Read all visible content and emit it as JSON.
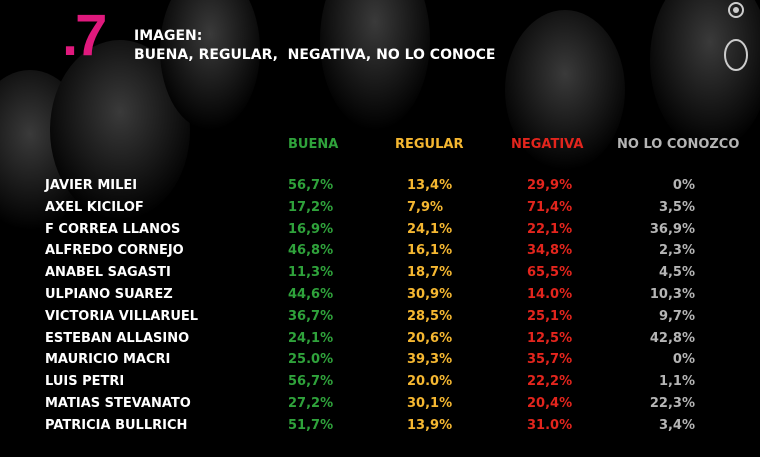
{
  "header": {
    "number": ".7",
    "title": "IMAGEN:",
    "subtitle": "BUENA, REGULAR,  NEGATIVA, NO LO CONOCE"
  },
  "table": {
    "columns": [
      "BUENA",
      "REGULAR",
      "NEGATIVA",
      "NO LO CONOZCO"
    ],
    "rows": [
      [
        "JAVIER MILEI",
        "56,7%",
        "13,4%",
        "29,9%",
        "0%"
      ],
      [
        "AXEL KICILOF",
        "17,2%",
        "7,9%",
        "71,4%",
        "3,5%"
      ],
      [
        "F CORREA LLANOS",
        "16,9%",
        "24,1%",
        "22,1%",
        "36,9%"
      ],
      [
        "ALFREDO CORNEJO",
        "46,8%",
        "16,1%",
        "34,8%",
        "2,3%"
      ],
      [
        "ANABEL SAGASTI",
        "11,3%",
        "18,7%",
        "65,5%",
        "4,5%"
      ],
      [
        "ULPIANO SUAREZ",
        "44,6%",
        "30,9%",
        "14.0%",
        "10,3%"
      ],
      [
        "VICTORIA VILLARUEL",
        "36,7%",
        "28,5%",
        "25,1%",
        "9,7%"
      ],
      [
        "ESTEBAN ALLASINO",
        "24,1%",
        "20,6%",
        "12,5%",
        "42,8%"
      ],
      [
        "MAURICIO MACRI",
        "25.0%",
        "39,3%",
        "35,7%",
        "0%"
      ],
      [
        "LUIS PETRI",
        "56,7%",
        "20.0%",
        "22,2%",
        "1,1%"
      ],
      [
        "MATIAS STEVANATO",
        "27,2%",
        "30,1%",
        "20,4%",
        "22,3%"
      ],
      [
        "PATRICIA BULLRICH",
        "51,7%",
        "13,9%",
        "31.0%",
        "3,4%"
      ]
    ]
  }
}
